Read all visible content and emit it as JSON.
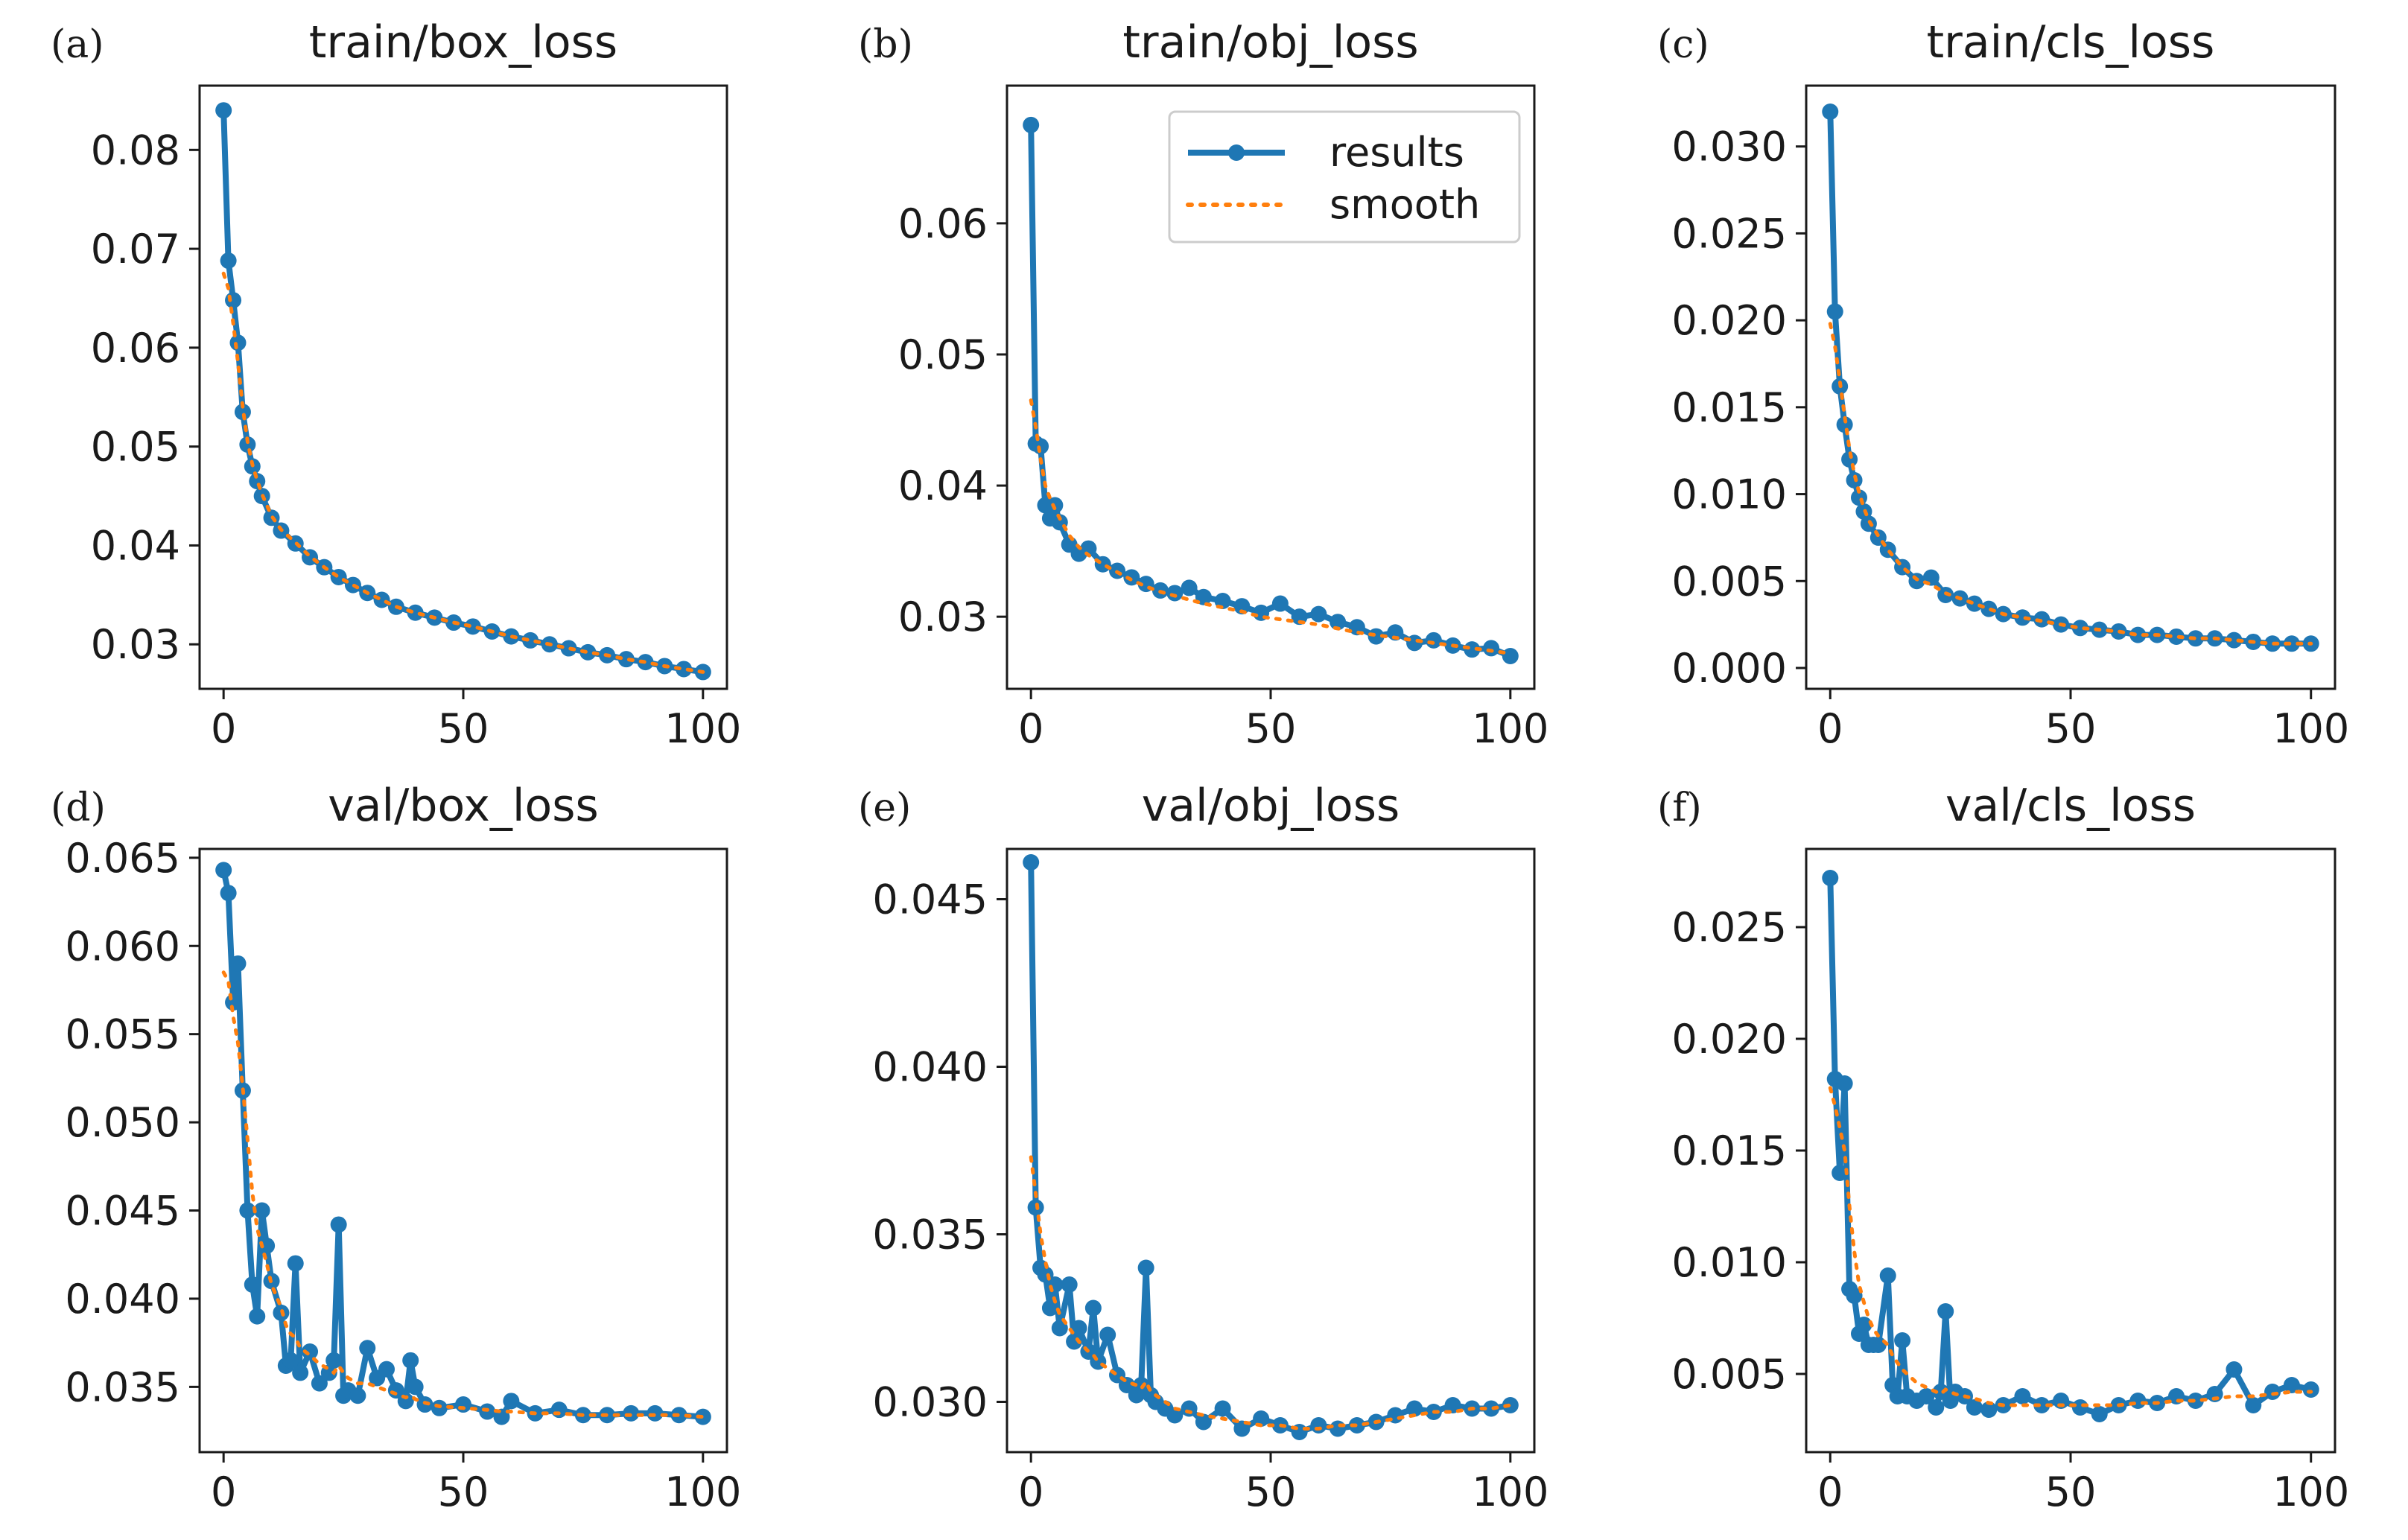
{
  "style": {
    "results_color": "#1f77b4",
    "smooth_color": "#ff7f0e",
    "axis_color": "#1a1a1a",
    "background": "#ffffff"
  },
  "legend": {
    "panel": 1,
    "placement": "top-right",
    "entries": [
      "results",
      "smooth"
    ]
  },
  "chart_data": [
    {
      "panel": "(a)",
      "type": "line",
      "title": "train/box_loss",
      "xlim": [
        -5,
        105
      ],
      "ylim": [
        0.0255,
        0.0865
      ],
      "x_ticks": [
        0,
        50,
        100
      ],
      "y_ticks": [
        0.03,
        0.04,
        0.05,
        0.06,
        0.07,
        0.08
      ],
      "y_tick_labels": [
        "0.03",
        "0.04",
        "0.05",
        "0.06",
        "0.07",
        "0.08"
      ],
      "x": [
        0,
        1,
        2,
        3,
        4,
        5,
        6,
        7,
        8,
        10,
        12,
        15,
        18,
        21,
        24,
        27,
        30,
        33,
        36,
        40,
        44,
        48,
        52,
        56,
        60,
        64,
        68,
        72,
        76,
        80,
        84,
        88,
        92,
        96,
        100
      ],
      "series": [
        {
          "name": "results",
          "values": [
            0.084,
            0.0688,
            0.0648,
            0.0605,
            0.0535,
            0.0502,
            0.048,
            0.0465,
            0.045,
            0.0428,
            0.0415,
            0.0402,
            0.0388,
            0.0378,
            0.0368,
            0.036,
            0.0352,
            0.0345,
            0.0338,
            0.0332,
            0.0327,
            0.0322,
            0.0318,
            0.0313,
            0.0308,
            0.0304,
            0.03,
            0.0296,
            0.0292,
            0.0289,
            0.0285,
            0.0282,
            0.0278,
            0.0275,
            0.0272
          ]
        },
        {
          "name": "smooth",
          "values": [
            0.0675,
            0.066,
            0.0625,
            0.0585,
            0.054,
            0.0505,
            0.0482,
            0.0466,
            0.0452,
            0.043,
            0.0416,
            0.0403,
            0.0389,
            0.0378,
            0.0368,
            0.036,
            0.0352,
            0.0345,
            0.0338,
            0.0332,
            0.0327,
            0.0322,
            0.0318,
            0.0313,
            0.0308,
            0.0304,
            0.03,
            0.0296,
            0.0292,
            0.0289,
            0.0285,
            0.0282,
            0.0278,
            0.0275,
            0.0272
          ]
        }
      ]
    },
    {
      "panel": "(b)",
      "type": "line",
      "title": "train/obj_loss",
      "xlim": [
        -5,
        105
      ],
      "ylim": [
        0.0245,
        0.0705
      ],
      "x_ticks": [
        0,
        50,
        100
      ],
      "y_ticks": [
        0.03,
        0.04,
        0.05,
        0.06
      ],
      "y_tick_labels": [
        "0.03",
        "0.04",
        "0.05",
        "0.06"
      ],
      "x": [
        0,
        1,
        2,
        3,
        4,
        5,
        6,
        8,
        10,
        12,
        15,
        18,
        21,
        24,
        27,
        30,
        33,
        36,
        40,
        44,
        48,
        52,
        56,
        60,
        64,
        68,
        72,
        76,
        80,
        84,
        88,
        92,
        96,
        100
      ],
      "series": [
        {
          "name": "results",
          "values": [
            0.0675,
            0.0432,
            0.043,
            0.0385,
            0.0375,
            0.0385,
            0.0372,
            0.0355,
            0.0348,
            0.0352,
            0.034,
            0.0335,
            0.033,
            0.0325,
            0.032,
            0.0318,
            0.0322,
            0.0315,
            0.0312,
            0.0308,
            0.0303,
            0.031,
            0.03,
            0.0302,
            0.0296,
            0.0292,
            0.0285,
            0.0288,
            0.028,
            0.0282,
            0.0278,
            0.0275,
            0.0276,
            0.027
          ]
        },
        {
          "name": "smooth",
          "values": [
            0.0465,
            0.0445,
            0.042,
            0.04,
            0.039,
            0.0382,
            0.0375,
            0.0362,
            0.0353,
            0.0347,
            0.034,
            0.0334,
            0.0328,
            0.0323,
            0.0319,
            0.0316,
            0.0313,
            0.031,
            0.0307,
            0.0304,
            0.03,
            0.0298,
            0.0296,
            0.0294,
            0.0291,
            0.0288,
            0.0286,
            0.0284,
            0.0282,
            0.028,
            0.0278,
            0.0276,
            0.0274,
            0.0272
          ]
        }
      ]
    },
    {
      "panel": "(c)",
      "type": "line",
      "title": "train/cls_loss",
      "xlim": [
        -5,
        105
      ],
      "ylim": [
        -0.0012,
        0.0335
      ],
      "x_ticks": [
        0,
        50,
        100
      ],
      "y_ticks": [
        0.0,
        0.005,
        0.01,
        0.015,
        0.02,
        0.025,
        0.03
      ],
      "y_tick_labels": [
        "0.000",
        "0.005",
        "0.010",
        "0.015",
        "0.020",
        "0.025",
        "0.030"
      ],
      "x": [
        0,
        1,
        2,
        3,
        4,
        5,
        6,
        7,
        8,
        10,
        12,
        15,
        18,
        21,
        24,
        27,
        30,
        33,
        36,
        40,
        44,
        48,
        52,
        56,
        60,
        64,
        68,
        72,
        76,
        80,
        84,
        88,
        92,
        96,
        100
      ],
      "series": [
        {
          "name": "results",
          "values": [
            0.032,
            0.0205,
            0.0162,
            0.014,
            0.012,
            0.0108,
            0.0098,
            0.009,
            0.0083,
            0.0075,
            0.0068,
            0.0058,
            0.005,
            0.0052,
            0.0042,
            0.004,
            0.0037,
            0.0034,
            0.0031,
            0.0029,
            0.0028,
            0.0025,
            0.0023,
            0.0022,
            0.0021,
            0.0019,
            0.0019,
            0.0018,
            0.0017,
            0.0017,
            0.0016,
            0.0015,
            0.0014,
            0.0014,
            0.0014
          ]
        },
        {
          "name": "smooth",
          "values": [
            0.0198,
            0.0185,
            0.0165,
            0.0145,
            0.0126,
            0.0112,
            0.0101,
            0.0092,
            0.0085,
            0.0076,
            0.0068,
            0.0058,
            0.0051,
            0.0048,
            0.0043,
            0.004,
            0.0037,
            0.0034,
            0.0031,
            0.0029,
            0.0027,
            0.0025,
            0.0023,
            0.0022,
            0.0021,
            0.0019,
            0.0019,
            0.0018,
            0.0017,
            0.0017,
            0.0016,
            0.0015,
            0.0014,
            0.0014,
            0.0014
          ]
        }
      ]
    },
    {
      "panel": "(d)",
      "type": "line",
      "title": "val/box_loss",
      "xlim": [
        -5,
        105
      ],
      "ylim": [
        0.0313,
        0.0655
      ],
      "x_ticks": [
        0,
        50,
        100
      ],
      "y_ticks": [
        0.035,
        0.04,
        0.045,
        0.05,
        0.055,
        0.06,
        0.065
      ],
      "y_tick_labels": [
        "0.035",
        "0.040",
        "0.045",
        "0.050",
        "0.055",
        "0.060",
        "0.065"
      ],
      "x": [
        0,
        1,
        2,
        3,
        4,
        5,
        6,
        7,
        8,
        9,
        10,
        12,
        13,
        14,
        15,
        16,
        18,
        20,
        22,
        23,
        24,
        25,
        26,
        28,
        30,
        32,
        34,
        36,
        38,
        39,
        40,
        42,
        45,
        50,
        55,
        58,
        60,
        65,
        70,
        75,
        80,
        85,
        90,
        95,
        100
      ],
      "series": [
        {
          "name": "results",
          "values": [
            0.0643,
            0.063,
            0.0568,
            0.059,
            0.0518,
            0.045,
            0.0408,
            0.039,
            0.045,
            0.043,
            0.041,
            0.0392,
            0.0362,
            0.0365,
            0.042,
            0.0358,
            0.037,
            0.0352,
            0.0358,
            0.0365,
            0.0442,
            0.0345,
            0.0348,
            0.0345,
            0.0372,
            0.0355,
            0.036,
            0.0348,
            0.0342,
            0.0365,
            0.035,
            0.034,
            0.0338,
            0.034,
            0.0336,
            0.0333,
            0.0342,
            0.0335,
            0.0337,
            0.0334,
            0.0334,
            0.0335,
            0.0335,
            0.0334,
            0.0333
          ]
        },
        {
          "name": "smooth",
          "values": [
            0.0585,
            0.058,
            0.056,
            0.0545,
            0.052,
            0.049,
            0.046,
            0.044,
            0.043,
            0.042,
            0.0408,
            0.0395,
            0.0385,
            0.038,
            0.0378,
            0.0372,
            0.0368,
            0.0363,
            0.036,
            0.0358,
            0.0362,
            0.0358,
            0.0355,
            0.0352,
            0.0352,
            0.035,
            0.0348,
            0.0346,
            0.0344,
            0.0345,
            0.0343,
            0.0341,
            0.0339,
            0.0338,
            0.0337,
            0.0336,
            0.0336,
            0.0335,
            0.0335,
            0.0334,
            0.0334,
            0.0334,
            0.0334,
            0.0334,
            0.0333
          ]
        }
      ]
    },
    {
      "panel": "(e)",
      "type": "line",
      "title": "val/obj_loss",
      "xlim": [
        -5,
        105
      ],
      "ylim": [
        0.0285,
        0.0465
      ],
      "x_ticks": [
        0,
        50,
        100
      ],
      "y_ticks": [
        0.03,
        0.035,
        0.04,
        0.045
      ],
      "y_tick_labels": [
        "0.030",
        "0.035",
        "0.040",
        "0.045"
      ],
      "x": [
        0,
        1,
        2,
        3,
        4,
        5,
        6,
        8,
        9,
        10,
        12,
        13,
        14,
        16,
        18,
        20,
        22,
        23,
        24,
        25,
        26,
        28,
        30,
        33,
        36,
        40,
        44,
        48,
        52,
        56,
        60,
        64,
        68,
        72,
        76,
        80,
        84,
        88,
        92,
        96,
        100
      ],
      "series": [
        {
          "name": "results",
          "values": [
            0.0461,
            0.0358,
            0.034,
            0.0338,
            0.0328,
            0.0335,
            0.0322,
            0.0335,
            0.0318,
            0.0322,
            0.0315,
            0.0328,
            0.0312,
            0.032,
            0.0308,
            0.0305,
            0.0302,
            0.0305,
            0.034,
            0.0302,
            0.03,
            0.0298,
            0.0296,
            0.0298,
            0.0294,
            0.0298,
            0.0292,
            0.0295,
            0.0293,
            0.0291,
            0.0293,
            0.0292,
            0.0293,
            0.0294,
            0.0296,
            0.0298,
            0.0297,
            0.0299,
            0.0298,
            0.0298,
            0.0299
          ]
        },
        {
          "name": "smooth",
          "values": [
            0.0373,
            0.0362,
            0.035,
            0.0342,
            0.0335,
            0.033,
            0.0326,
            0.0322,
            0.032,
            0.0318,
            0.0315,
            0.0314,
            0.0312,
            0.031,
            0.0308,
            0.0306,
            0.0305,
            0.0304,
            0.0306,
            0.0303,
            0.0302,
            0.03,
            0.0298,
            0.0297,
            0.0296,
            0.0295,
            0.0294,
            0.0293,
            0.0293,
            0.0292,
            0.0292,
            0.0293,
            0.0293,
            0.0294,
            0.0295,
            0.0296,
            0.0297,
            0.0297,
            0.0298,
            0.0298,
            0.0299
          ]
        }
      ]
    },
    {
      "panel": "(f)",
      "type": "line",
      "title": "val/cls_loss",
      "xlim": [
        -5,
        105
      ],
      "ylim": [
        0.0015,
        0.0285
      ],
      "x_ticks": [
        0,
        50,
        100
      ],
      "y_ticks": [
        0.005,
        0.01,
        0.015,
        0.02,
        0.025
      ],
      "y_tick_labels": [
        "0.005",
        "0.010",
        "0.015",
        "0.020",
        "0.025"
      ],
      "x": [
        0,
        1,
        2,
        3,
        4,
        5,
        6,
        7,
        8,
        9,
        10,
        12,
        13,
        14,
        15,
        16,
        18,
        20,
        22,
        23,
        24,
        25,
        26,
        28,
        30,
        33,
        36,
        40,
        44,
        48,
        52,
        56,
        60,
        64,
        68,
        72,
        76,
        80,
        84,
        88,
        92,
        96,
        100
      ],
      "series": [
        {
          "name": "results",
          "values": [
            0.0272,
            0.0182,
            0.014,
            0.018,
            0.0088,
            0.0085,
            0.0068,
            0.0072,
            0.0063,
            0.0063,
            0.0063,
            0.0094,
            0.0045,
            0.004,
            0.0065,
            0.004,
            0.0038,
            0.004,
            0.0035,
            0.0042,
            0.0078,
            0.0038,
            0.0042,
            0.004,
            0.0035,
            0.0034,
            0.0036,
            0.004,
            0.0036,
            0.0038,
            0.0035,
            0.0032,
            0.0036,
            0.0038,
            0.0037,
            0.004,
            0.0038,
            0.0041,
            0.0052,
            0.0036,
            0.0042,
            0.0045,
            0.0043
          ]
        },
        {
          "name": "smooth",
          "values": [
            0.0178,
            0.017,
            0.016,
            0.015,
            0.0125,
            0.0105,
            0.009,
            0.0082,
            0.0075,
            0.007,
            0.0067,
            0.0063,
            0.0058,
            0.0055,
            0.0052,
            0.005,
            0.0046,
            0.0044,
            0.0042,
            0.0041,
            0.0043,
            0.0042,
            0.0041,
            0.004,
            0.0039,
            0.0037,
            0.0036,
            0.0036,
            0.0036,
            0.0036,
            0.0036,
            0.0036,
            0.0036,
            0.0037,
            0.0037,
            0.0038,
            0.0038,
            0.0039,
            0.004,
            0.004,
            0.0041,
            0.0042,
            0.0042
          ]
        }
      ]
    }
  ]
}
